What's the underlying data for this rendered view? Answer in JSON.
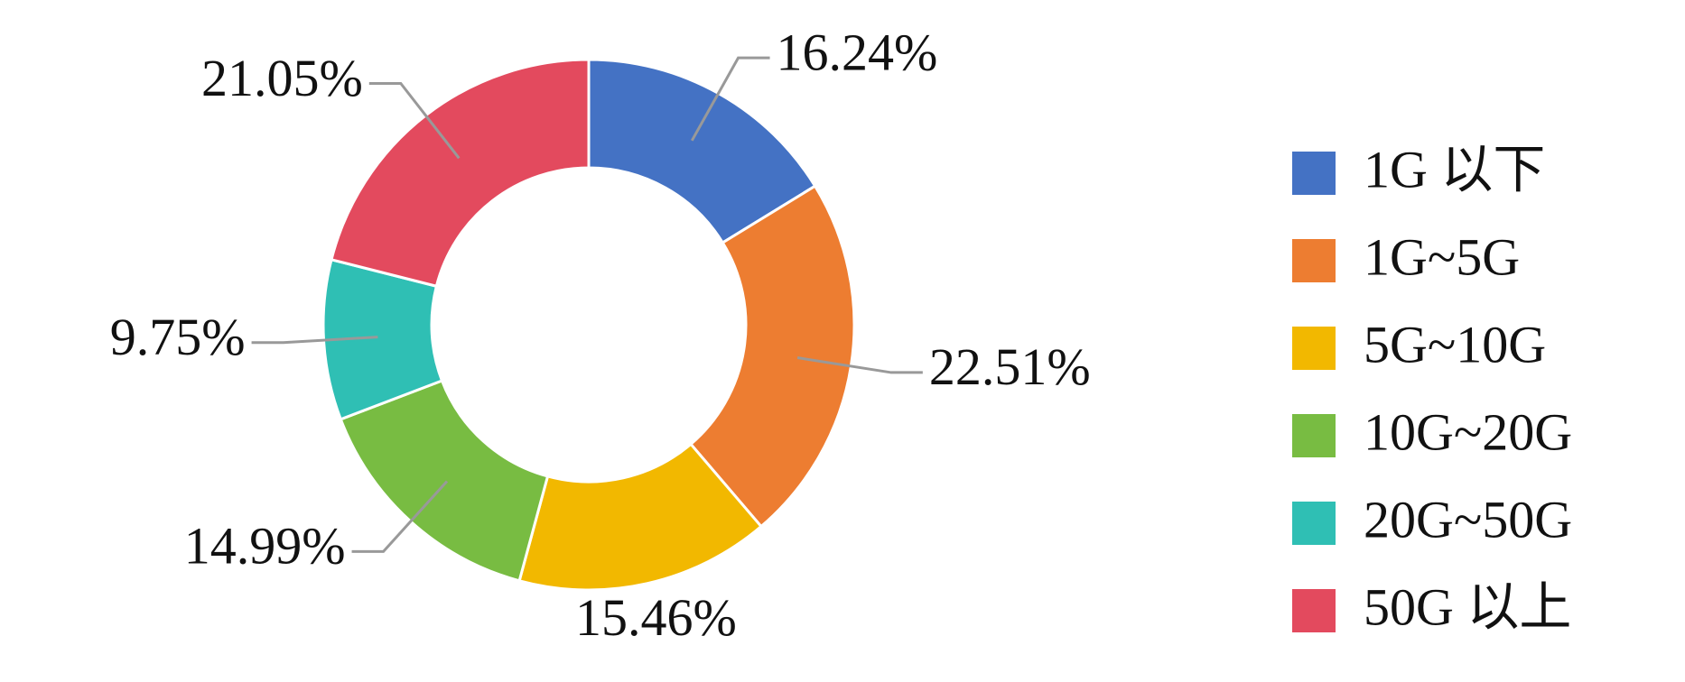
{
  "chart_data": {
    "type": "pie",
    "donut": true,
    "categories": [
      "1G 以下",
      "1G~5G",
      "5G~10G",
      "10G~20G",
      "20G~50G",
      "50G 以上"
    ],
    "values": [
      16.24,
      22.51,
      15.46,
      14.99,
      9.75,
      21.05
    ],
    "value_labels": [
      "16.24%",
      "22.51%",
      "15.46%",
      "14.99%",
      "9.75%",
      "21.05%"
    ],
    "colors": [
      "#4472c4",
      "#ed7d31",
      "#f2b800",
      "#78bc42",
      "#2fbfb4",
      "#e34a5e"
    ],
    "legend": "right"
  }
}
